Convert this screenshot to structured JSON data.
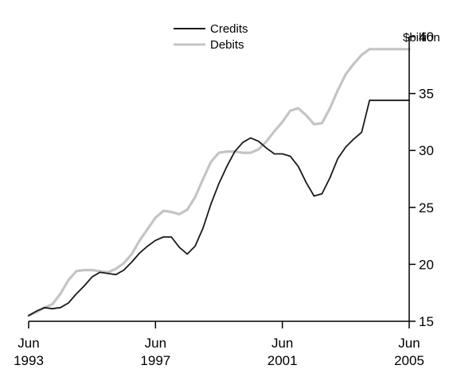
{
  "chart_data": {
    "type": "line",
    "y_unit": "$billion",
    "ylim": [
      15,
      40
    ],
    "y_ticks": [
      15,
      20,
      25,
      30,
      35,
      40
    ],
    "xlim": [
      1993.5,
      2005.5
    ],
    "x_ticks": [
      {
        "value": 1993.5,
        "line1": "Jun",
        "line2": "1993"
      },
      {
        "value": 1997.5,
        "line1": "Jun",
        "line2": "1997"
      },
      {
        "value": 2001.5,
        "line1": "Jun",
        "line2": "2001"
      },
      {
        "value": 2005.5,
        "line1": "Jun",
        "line2": "2005"
      }
    ],
    "grid": false,
    "legend_position": "top-center",
    "x": [
      1993.5,
      1993.75,
      1994,
      1994.25,
      1994.5,
      1994.75,
      1995,
      1995.25,
      1995.5,
      1995.75,
      1996,
      1996.25,
      1996.5,
      1996.75,
      1997,
      1997.25,
      1997.5,
      1997.75,
      1998,
      1998.25,
      1998.5,
      1998.75,
      1999,
      1999.25,
      1999.5,
      1999.75,
      2000,
      2000.25,
      2000.5,
      2000.75,
      2001,
      2001.25,
      2001.5,
      2001.75,
      2002,
      2002.25,
      2002.5,
      2002.75,
      2003,
      2003.25,
      2003.5,
      2003.75,
      2004,
      2004.25,
      2004.5,
      2004.75,
      2005,
      2005.25,
      2005.5
    ],
    "series": [
      {
        "name": "Credits",
        "color": "#1a1a1a",
        "values": [
          15.5,
          15.9,
          16.2,
          16.1,
          16.2,
          16.6,
          17.4,
          18.1,
          18.9,
          19.3,
          19.2,
          19.1,
          19.5,
          20.2,
          21.0,
          21.6,
          22.1,
          22.4,
          22.4,
          21.5,
          20.9,
          21.6,
          23.2,
          25.3,
          27.1,
          28.6,
          29.9,
          30.7,
          31.1,
          30.8,
          30.2,
          29.7,
          29.7,
          29.5,
          28.6,
          27.2,
          26.0,
          26.2,
          27.6,
          29.3,
          30.3,
          31.0,
          31.6,
          34.4,
          34.4,
          34.4,
          34.4,
          34.4,
          34.4
        ]
      },
      {
        "name": "Debits",
        "color": "#c4c4c4",
        "values": [
          15.5,
          15.8,
          16.2,
          16.5,
          17.4,
          18.6,
          19.4,
          19.5,
          19.5,
          19.4,
          19.3,
          19.6,
          20.1,
          20.9,
          22.1,
          23.1,
          24.1,
          24.7,
          24.6,
          24.4,
          24.8,
          25.9,
          27.5,
          29.0,
          29.8,
          29.9,
          29.9,
          29.8,
          29.8,
          30.1,
          30.8,
          31.7,
          32.5,
          33.5,
          33.7,
          33.1,
          32.3,
          32.4,
          33.7,
          35.3,
          36.7,
          37.6,
          38.4,
          38.9,
          38.9,
          38.9,
          38.9,
          38.9,
          38.9
        ]
      }
    ]
  }
}
